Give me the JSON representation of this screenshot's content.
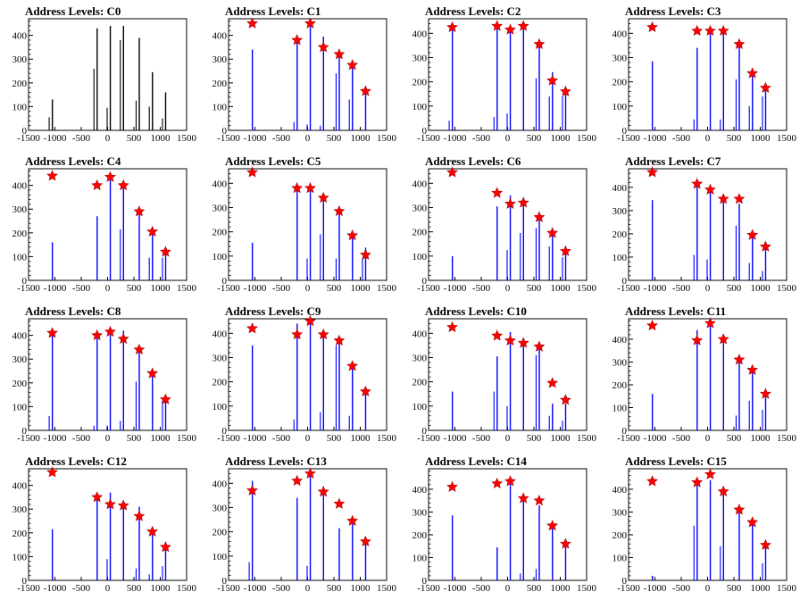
{
  "figure": {
    "x_ticks": [
      "-1500",
      "-1000",
      "-500",
      "0",
      "500",
      "1000",
      "1500"
    ],
    "x_range": [
      -1500,
      1500
    ],
    "peak_positions": [
      -1050,
      -200,
      50,
      300,
      600,
      850,
      1100
    ]
  },
  "chart_data": [
    {
      "type": "bar",
      "title": "Address Levels: C0",
      "ylim": [
        0,
        470
      ],
      "yticks": [
        0,
        100,
        200,
        300,
        400
      ],
      "bar_color": "#000000",
      "star_color": "#ff0000",
      "series": [
        {
          "name": "",
          "values": [
            130,
            430,
            440,
            440,
            390,
            245,
            160
          ],
          "shadows": [
            55,
            260,
            95,
            380,
            125,
            100,
            50
          ]
        }
      ],
      "markers": []
    },
    {
      "type": "bar",
      "title": "Address Levels: C1",
      "ylim": [
        0,
        470
      ],
      "yticks": [
        0,
        100,
        200,
        300,
        400
      ],
      "bar_color": "#0000ff",
      "star_color": "#ff0000",
      "series": [
        {
          "name": "",
          "values": [
            340,
            380,
            445,
            395,
            325,
            270,
            165
          ],
          "shadows": [
            0,
            35,
            25,
            20,
            240,
            130,
            0
          ]
        }
      ],
      "markers": [
        450,
        380,
        450,
        350,
        320,
        275,
        165
      ]
    },
    {
      "type": "bar",
      "title": "Address Levels: C2",
      "ylim": [
        0,
        460
      ],
      "yticks": [
        0,
        100,
        200,
        300,
        400
      ],
      "bar_color": "#0000ff",
      "star_color": "#ff0000",
      "series": [
        {
          "name": "",
          "values": [
            430,
            425,
            420,
            440,
            355,
            240,
            165
          ],
          "shadows": [
            40,
            55,
            70,
            0,
            215,
            140,
            140
          ]
        }
      ],
      "markers": [
        425,
        430,
        415,
        430,
        355,
        205,
        160
      ]
    },
    {
      "type": "bar",
      "title": "Address Levels: C3",
      "ylim": [
        0,
        460
      ],
      "yticks": [
        0,
        100,
        200,
        300,
        400
      ],
      "bar_color": "#0000ff",
      "star_color": "#ff0000",
      "series": [
        {
          "name": "",
          "values": [
            285,
            340,
            410,
            410,
            355,
            245,
            170
          ],
          "shadows": [
            0,
            45,
            0,
            45,
            210,
            100,
            140
          ]
        }
      ],
      "markers": [
        425,
        410,
        410,
        410,
        355,
        235,
        175
      ]
    },
    {
      "type": "bar",
      "title": "Address Levels: C4",
      "ylim": [
        0,
        470
      ],
      "yticks": [
        0,
        100,
        200,
        300,
        400
      ],
      "bar_color": "#0000ff",
      "star_color": "#ff0000",
      "series": [
        {
          "name": "",
          "values": [
            160,
            270,
            440,
            400,
            300,
            210,
            125
          ],
          "shadows": [
            0,
            0,
            0,
            215,
            0,
            95,
            95
          ]
        }
      ],
      "markers": [
        440,
        400,
        435,
        400,
        290,
        205,
        120
      ]
    },
    {
      "type": "bar",
      "title": "Address Levels: C5",
      "ylim": [
        0,
        460
      ],
      "yticks": [
        0,
        100,
        200,
        300,
        400
      ],
      "bar_color": "#0000ff",
      "star_color": "#ff0000",
      "series": [
        {
          "name": "",
          "values": [
            155,
            380,
            385,
            350,
            285,
            190,
            135
          ],
          "shadows": [
            0,
            0,
            90,
            190,
            90,
            0,
            90
          ]
        }
      ],
      "markers": [
        445,
        380,
        380,
        340,
        285,
        185,
        105
      ]
    },
    {
      "type": "bar",
      "title": "Address Levels: C6",
      "ylim": [
        0,
        460
      ],
      "yticks": [
        0,
        100,
        200,
        300,
        400
      ],
      "bar_color": "#0000ff",
      "star_color": "#ff0000",
      "series": [
        {
          "name": "",
          "values": [
            100,
            305,
            350,
            320,
            265,
            190,
            120
          ],
          "shadows": [
            0,
            0,
            125,
            195,
            215,
            140,
            95
          ]
        }
      ],
      "markers": [
        445,
        360,
        315,
        320,
        260,
        195,
        120
      ]
    },
    {
      "type": "bar",
      "title": "Address Levels: C7",
      "ylim": [
        0,
        480
      ],
      "yticks": [
        0,
        100,
        200,
        300,
        400
      ],
      "bar_color": "#0000ff",
      "star_color": "#ff0000",
      "series": [
        {
          "name": "",
          "values": [
            345,
            415,
            400,
            350,
            330,
            195,
            145
          ],
          "shadows": [
            0,
            110,
            90,
            0,
            235,
            75,
            40
          ]
        }
      ],
      "markers": [
        465,
        415,
        390,
        350,
        350,
        195,
        145
      ]
    },
    {
      "type": "bar",
      "title": "Address Levels: C8",
      "ylim": [
        0,
        470
      ],
      "yticks": [
        0,
        100,
        200,
        300,
        400
      ],
      "bar_color": "#0000ff",
      "star_color": "#ff0000",
      "series": [
        {
          "name": "",
          "values": [
            410,
            405,
            420,
            420,
            335,
            250,
            150
          ],
          "shadows": [
            60,
            20,
            20,
            40,
            205,
            0,
            125
          ]
        }
      ],
      "markers": [
        410,
        400,
        415,
        385,
        340,
        240,
        130
      ]
    },
    {
      "type": "bar",
      "title": "Address Levels: C9",
      "ylim": [
        0,
        460
      ],
      "yticks": [
        0,
        100,
        200,
        300,
        400
      ],
      "bar_color": "#0000ff",
      "star_color": "#ff0000",
      "series": [
        {
          "name": "",
          "values": [
            350,
            440,
            445,
            395,
            380,
            275,
            165
          ],
          "shadows": [
            0,
            45,
            0,
            75,
            350,
            60,
            0
          ]
        }
      ],
      "markers": [
        420,
        395,
        450,
        395,
        370,
        265,
        160
      ]
    },
    {
      "type": "bar",
      "title": "Address Levels: C10",
      "ylim": [
        0,
        460
      ],
      "yticks": [
        0,
        100,
        200,
        300,
        400
      ],
      "bar_color": "#0000ff",
      "star_color": "#ff0000",
      "series": [
        {
          "name": "",
          "values": [
            160,
            305,
            405,
            365,
            350,
            110,
            110
          ],
          "shadows": [
            0,
            160,
            100,
            0,
            310,
            60,
            40
          ]
        }
      ],
      "markers": [
        425,
        390,
        370,
        360,
        345,
        195,
        125
      ]
    },
    {
      "type": "bar",
      "title": "Address Levels: C11",
      "ylim": [
        0,
        490
      ],
      "yticks": [
        0,
        100,
        200,
        300,
        400
      ],
      "bar_color": "#0000ff",
      "star_color": "#ff0000",
      "series": [
        {
          "name": "",
          "values": [
            160,
            440,
            460,
            390,
            300,
            260,
            165
          ],
          "shadows": [
            0,
            0,
            0,
            0,
            65,
            130,
            90
          ]
        }
      ],
      "markers": [
        460,
        395,
        470,
        400,
        310,
        265,
        160
      ]
    },
    {
      "type": "bar",
      "title": "Address Levels: C12",
      "ylim": [
        0,
        470
      ],
      "yticks": [
        0,
        100,
        200,
        300,
        400
      ],
      "bar_color": "#0000ff",
      "star_color": "#ff0000",
      "series": [
        {
          "name": "",
          "values": [
            215,
            360,
            370,
            320,
            310,
            215,
            140
          ],
          "shadows": [
            0,
            0,
            90,
            0,
            50,
            25,
            60
          ]
        }
      ],
      "markers": [
        455,
        350,
        320,
        315,
        270,
        205,
        140
      ]
    },
    {
      "type": "bar",
      "title": "Address Levels: C13",
      "ylim": [
        0,
        460
      ],
      "yticks": [
        0,
        100,
        200,
        300,
        400
      ],
      "bar_color": "#0000ff",
      "star_color": "#ff0000",
      "series": [
        {
          "name": "",
          "values": [
            410,
            340,
            440,
            385,
            215,
            245,
            165
          ],
          "shadows": [
            75,
            0,
            60,
            0,
            0,
            0,
            0
          ]
        }
      ],
      "markers": [
        370,
        410,
        440,
        365,
        315,
        245,
        160
      ]
    },
    {
      "type": "bar",
      "title": "Address Levels: C14",
      "ylim": [
        0,
        490
      ],
      "yticks": [
        0,
        100,
        200,
        300,
        400
      ],
      "bar_color": "#0000ff",
      "star_color": "#ff0000",
      "series": [
        {
          "name": "",
          "values": [
            285,
            145,
            440,
            360,
            330,
            245,
            165
          ],
          "shadows": [
            0,
            0,
            0,
            30,
            50,
            0,
            0
          ]
        }
      ],
      "markers": [
        410,
        425,
        435,
        360,
        350,
        240,
        160
      ]
    },
    {
      "type": "bar",
      "title": "Address Levels: C15",
      "ylim": [
        0,
        490
      ],
      "yticks": [
        0,
        100,
        200,
        300,
        400
      ],
      "bar_color": "#0000ff",
      "star_color": "#ff0000",
      "series": [
        {
          "name": "",
          "values": [
            20,
            430,
            440,
            390,
            325,
            250,
            160
          ],
          "shadows": [
            0,
            240,
            0,
            150,
            0,
            0,
            75
          ]
        }
      ],
      "markers": [
        435,
        430,
        465,
        390,
        310,
        255,
        155
      ]
    }
  ]
}
